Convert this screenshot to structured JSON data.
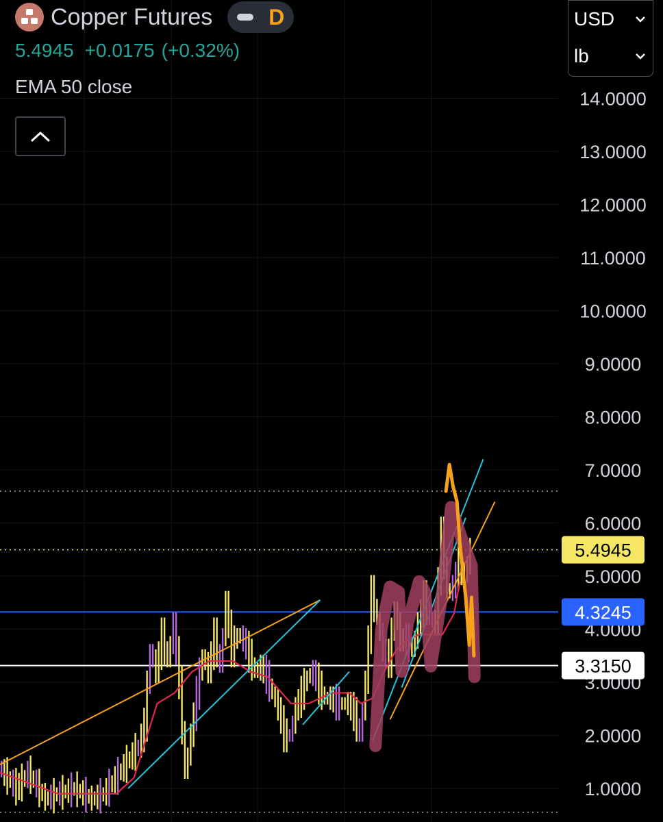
{
  "header": {
    "symbol_name": "Copper Futures",
    "interval": "D",
    "last_price": "5.4945",
    "change": "+0.0175",
    "change_pct": "(+0.32%)",
    "indicator_label": "EMA 50 close"
  },
  "unit_selector": {
    "currency": "USD",
    "unit": "lb"
  },
  "icons": {
    "logo": "copper-logo-icon",
    "collapse": "chevron-up-icon",
    "currency": "chevron-down-icon",
    "unit": "chevron-down-icon"
  },
  "colors": {
    "background": "#000000",
    "up": "#26a69a",
    "candle": "#f5e663",
    "candle_alt": "#b36ad8",
    "ema": "#e0284f",
    "trend_cyan": "#26c6da",
    "trend_orange": "#f7a21b",
    "highlight_stroke": "#a0405f",
    "blue_line": "#2962ff",
    "white_line": "#ffffff"
  },
  "chart_data": {
    "type": "line",
    "y_axis_ticks": [
      "14.0000",
      "13.0000",
      "12.0000",
      "11.0000",
      "10.0000",
      "9.0000",
      "8.0000",
      "7.0000",
      "6.0000",
      "5.0000",
      "4.0000",
      "3.0000",
      "2.0000",
      "1.0000"
    ],
    "y_tick_values": [
      14,
      13,
      12,
      11,
      10,
      9,
      8,
      7,
      6,
      5,
      4,
      3,
      2,
      1
    ],
    "ylim": [
      0.5,
      14.6
    ],
    "grid": true,
    "price_labels": [
      {
        "name": "last",
        "text": "5.4945",
        "value": 5.4945,
        "bg": "#f5e663",
        "fg": "#000000",
        "line_style": "dotted",
        "line_color": "#f5e663"
      },
      {
        "name": "blue-level",
        "text": "4.3245",
        "value": 4.3245,
        "bg": "#2962ff",
        "fg": "#ffffff",
        "line_style": "solid",
        "line_color": "#2962ff"
      },
      {
        "name": "white-level",
        "text": "3.3150",
        "value": 3.315,
        "bg": "#ffffff",
        "fg": "#000000",
        "line_style": "solid",
        "line_color": "#ffffff"
      }
    ],
    "reference_lines": [
      {
        "value": 6.6,
        "style": "dotted",
        "color": "#aaaaaa"
      },
      {
        "value": 0.55,
        "style": "dotted",
        "color": "#aaaaaa"
      }
    ],
    "x_index_range": [
      0,
      100
    ],
    "price_series": {
      "x": [
        0,
        3,
        5,
        8,
        10,
        13,
        16,
        18,
        20,
        22,
        24,
        25,
        26,
        27,
        28,
        29,
        30,
        31,
        32,
        33,
        34,
        35,
        36,
        37,
        38,
        39,
        40,
        41,
        42,
        43,
        44,
        45,
        46,
        47,
        48,
        49,
        50,
        51,
        52,
        53,
        54,
        55,
        56,
        57,
        58,
        59,
        60,
        61,
        62,
        63,
        64,
        65,
        66,
        67,
        68,
        69,
        70,
        71,
        72,
        73,
        74,
        75,
        76,
        77,
        78,
        79,
        80,
        81
      ],
      "values": [
        1.4,
        1.0,
        1.3,
        0.8,
        0.9,
        1.0,
        0.8,
        0.9,
        1.2,
        1.5,
        1.8,
        2.2,
        3.6,
        3.2,
        3.9,
        3.4,
        4.1,
        3.0,
        1.3,
        2.0,
        2.8,
        3.5,
        3.2,
        3.9,
        3.3,
        4.5,
        3.6,
        3.9,
        3.8,
        3.5,
        3.2,
        3.3,
        3.1,
        2.8,
        2.5,
        2.0,
        2.0,
        2.5,
        2.8,
        3.1,
        3.2,
        2.9,
        2.7,
        2.7,
        2.6,
        2.6,
        2.6,
        2.4,
        2.0,
        3.0,
        4.7,
        4.2,
        3.6,
        3.4,
        4.4,
        3.8,
        3.8,
        3.6,
        4.1,
        4.6,
        4.2,
        4.1,
        5.8,
        4.7,
        4.8,
        5.3,
        5.0,
        5.5
      ]
    },
    "ema_series": {
      "x": [
        0,
        5,
        10,
        15,
        20,
        23,
        25,
        27,
        30,
        33,
        36,
        40,
        43,
        46,
        50,
        53,
        55,
        57,
        60,
        62,
        64,
        66,
        68,
        70,
        72,
        74,
        76,
        78,
        79
      ],
      "values": [
        1.3,
        1.1,
        0.9,
        0.9,
        0.9,
        1.2,
        1.9,
        2.6,
        2.8,
        3.2,
        3.4,
        3.4,
        3.2,
        3.1,
        2.6,
        2.6,
        2.7,
        2.8,
        2.8,
        2.6,
        2.7,
        3.2,
        3.6,
        3.8,
        3.9,
        3.9,
        3.9,
        4.3,
        4.9
      ]
    },
    "trendlines": [
      {
        "color": "#f7a21b",
        "points": [
          [
            0,
            1.45
          ],
          [
            55,
            4.55
          ]
        ]
      },
      {
        "color": "#26c6da",
        "points": [
          [
            22,
            1.0
          ],
          [
            55,
            4.55
          ]
        ]
      },
      {
        "color": "#26c6da",
        "points": [
          [
            52,
            2.2
          ],
          [
            60,
            3.2
          ]
        ]
      },
      {
        "color": "#26c6da",
        "points": [
          [
            64,
            1.9
          ],
          [
            83,
            7.2
          ]
        ]
      },
      {
        "color": "#26c6da",
        "points": [
          [
            69,
            2.9
          ],
          [
            80,
            6.1
          ]
        ]
      },
      {
        "color": "#f7a21b",
        "points": [
          [
            67,
            2.3
          ],
          [
            85,
            6.4
          ]
        ]
      }
    ],
    "highlight_path": [
      [
        64.5,
        1.8
      ],
      [
        65.5,
        4.0
      ],
      [
        67.0,
        4.8
      ],
      [
        68.5,
        4.7
      ],
      [
        69.0,
        3.2
      ],
      [
        70.0,
        4.1
      ],
      [
        72.0,
        4.9
      ],
      [
        73.0,
        4.7
      ],
      [
        74.0,
        3.3
      ],
      [
        76.0,
        4.7
      ],
      [
        77.5,
        6.3
      ],
      [
        79.0,
        5.8
      ],
      [
        81.0,
        5.2
      ],
      [
        81.5,
        3.1
      ]
    ],
    "orange_scribble": [
      [
        76.6,
        6.6
      ],
      [
        77.2,
        7.1
      ],
      [
        77.8,
        6.7
      ],
      [
        78.5,
        6.4
      ],
      [
        79.0,
        5.6
      ],
      [
        79.6,
        5.0
      ],
      [
        80.0,
        4.6
      ],
      [
        80.6,
        3.7
      ],
      [
        81.0,
        4.6
      ],
      [
        81.4,
        3.5
      ]
    ]
  }
}
